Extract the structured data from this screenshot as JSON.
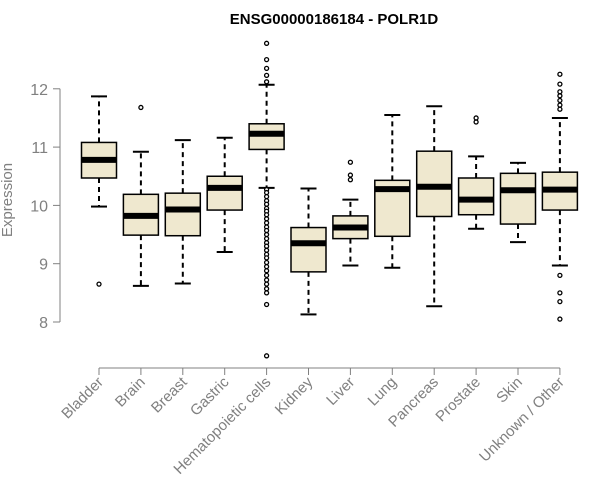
{
  "chart_data": {
    "type": "boxplot",
    "title": "ENSG00000186184 - POLR1D",
    "xlabel": "",
    "ylabel": "Expression",
    "ylim": [
      7.3,
      12.9
    ],
    "yticks": [
      "8",
      "9",
      "10",
      "11",
      "12"
    ],
    "grid": false,
    "box_fill": "#efe8cf",
    "categories": [
      "Bladder",
      "Brain",
      "Breast",
      "Gastric",
      "Hematopoietic cells",
      "Kidney",
      "Liver",
      "Lung",
      "Pancreas",
      "Prostate",
      "Skin",
      "Unknown / Other"
    ],
    "boxes": [
      {
        "q1": 10.47,
        "median": 10.78,
        "q3": 11.08,
        "whisker_low": 9.98,
        "whisker_high": 11.87,
        "outliers": [
          8.65
        ]
      },
      {
        "q1": 9.49,
        "median": 9.82,
        "q3": 10.19,
        "whisker_low": 8.62,
        "whisker_high": 10.92,
        "outliers": [
          11.68
        ]
      },
      {
        "q1": 9.48,
        "median": 9.93,
        "q3": 10.21,
        "whisker_low": 8.66,
        "whisker_high": 11.12,
        "outliers": []
      },
      {
        "q1": 9.92,
        "median": 10.3,
        "q3": 10.5,
        "whisker_low": 9.2,
        "whisker_high": 11.16,
        "outliers": []
      },
      {
        "q1": 10.96,
        "median": 11.23,
        "q3": 11.4,
        "whisker_low": 10.3,
        "whisker_high": 12.07,
        "outliers": [
          12.78,
          12.5,
          12.35,
          12.23,
          12.12,
          10.27,
          10.22,
          10.15,
          10.08,
          10.02,
          9.95,
          9.9,
          9.84,
          9.77,
          9.7,
          9.63,
          9.57,
          9.5,
          9.43,
          9.36,
          9.3,
          9.23,
          9.16,
          9.1,
          9.02,
          8.95,
          8.88,
          8.8,
          8.72,
          8.65,
          8.57,
          8.5,
          8.3,
          7.42
        ]
      },
      {
        "q1": 8.86,
        "median": 9.35,
        "q3": 9.62,
        "whisker_low": 8.13,
        "whisker_high": 10.29,
        "outliers": []
      },
      {
        "q1": 9.43,
        "median": 9.62,
        "q3": 9.82,
        "whisker_low": 8.97,
        "whisker_high": 10.1,
        "outliers": [
          10.44,
          10.52,
          10.74
        ]
      },
      {
        "q1": 9.47,
        "median": 10.28,
        "q3": 10.43,
        "whisker_low": 8.93,
        "whisker_high": 11.55,
        "outliers": []
      },
      {
        "q1": 9.81,
        "median": 10.32,
        "q3": 10.93,
        "whisker_low": 8.27,
        "whisker_high": 11.7,
        "outliers": []
      },
      {
        "q1": 9.84,
        "median": 10.1,
        "q3": 10.47,
        "whisker_low": 9.6,
        "whisker_high": 10.84,
        "outliers": [
          11.43,
          11.5
        ]
      },
      {
        "q1": 9.68,
        "median": 10.26,
        "q3": 10.55,
        "whisker_low": 9.37,
        "whisker_high": 10.73,
        "outliers": []
      },
      {
        "q1": 9.92,
        "median": 10.27,
        "q3": 10.57,
        "whisker_low": 8.97,
        "whisker_high": 11.5,
        "outliers": [
          12.25,
          12.08,
          11.95,
          11.88,
          11.8,
          11.72,
          11.65,
          8.8,
          8.5,
          8.35,
          8.05
        ]
      }
    ]
  }
}
